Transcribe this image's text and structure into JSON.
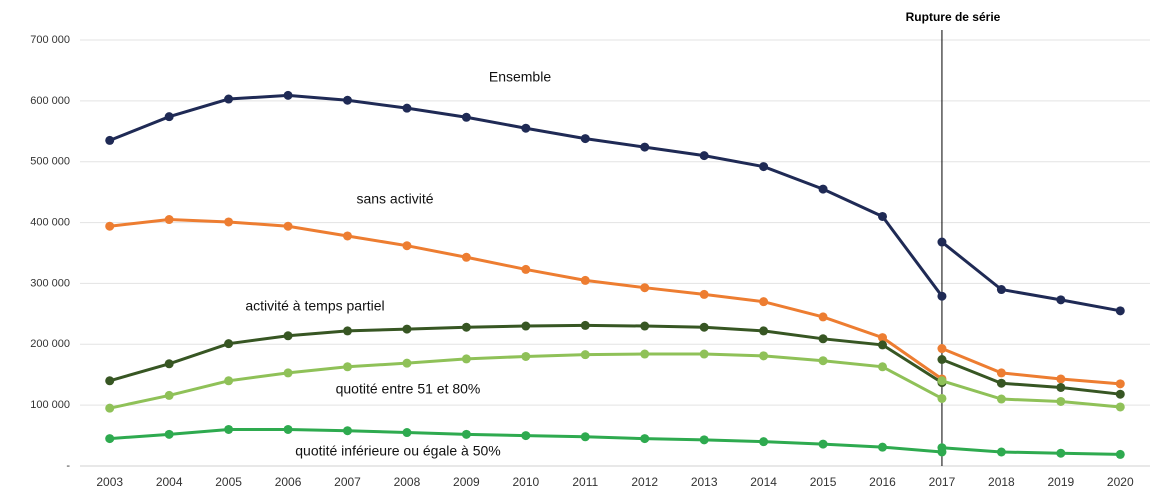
{
  "chart_data": {
    "type": "line",
    "annotation": "Rupture de série",
    "break_at": "2017",
    "categories": [
      "2003",
      "2004",
      "2005",
      "2006",
      "2007",
      "2008",
      "2009",
      "2010",
      "2011",
      "2012",
      "2013",
      "2014",
      "2015",
      "2016",
      "2017",
      "2018",
      "2019",
      "2020"
    ],
    "ylim": [
      0,
      700000
    ],
    "yticks": [
      {
        "value": 0,
        "label": "-"
      },
      {
        "value": 100000,
        "label": "100 000"
      },
      {
        "value": 200000,
        "label": "200 000"
      },
      {
        "value": 300000,
        "label": "300 000"
      },
      {
        "value": 400000,
        "label": "400 000"
      },
      {
        "value": 500000,
        "label": "500 000"
      },
      {
        "value": 600000,
        "label": "600 000"
      },
      {
        "value": 700000,
        "label": "700 000"
      }
    ],
    "grid": true,
    "series": [
      {
        "name": "Ensemble",
        "color": "#1f2a55",
        "values": [
          535000,
          574000,
          603000,
          609000,
          601000,
          588000,
          573000,
          555000,
          538000,
          524000,
          510000,
          492000,
          455000,
          410000,
          279000,
          null,
          null,
          null
        ],
        "values_after_break": [
          null,
          null,
          null,
          null,
          null,
          null,
          null,
          null,
          null,
          null,
          null,
          null,
          null,
          null,
          368000,
          290000,
          273000,
          255000
        ]
      },
      {
        "name": "sans activité",
        "color": "#ed7d31",
        "values": [
          394000,
          405000,
          401000,
          394000,
          378000,
          362000,
          343000,
          323000,
          305000,
          293000,
          282000,
          270000,
          245000,
          211000,
          143000,
          null,
          null,
          null
        ],
        "values_after_break": [
          null,
          null,
          null,
          null,
          null,
          null,
          null,
          null,
          null,
          null,
          null,
          null,
          null,
          null,
          193000,
          153000,
          143000,
          135000
        ]
      },
      {
        "name": "activité à temps partiel",
        "color": "#375623",
        "values": [
          140000,
          168000,
          201000,
          214000,
          222000,
          225000,
          228000,
          230000,
          231000,
          230000,
          228000,
          222000,
          209000,
          199000,
          137000,
          null,
          null,
          null
        ],
        "values_after_break": [
          null,
          null,
          null,
          null,
          null,
          null,
          null,
          null,
          null,
          null,
          null,
          null,
          null,
          null,
          175000,
          136000,
          129000,
          118000
        ]
      },
      {
        "name": "quotité entre 51 et 80%",
        "color": "#8fc158",
        "values": [
          95000,
          116000,
          140000,
          153000,
          163000,
          169000,
          176000,
          180000,
          183000,
          184000,
          184000,
          181000,
          173000,
          163000,
          111000,
          null,
          null,
          null
        ],
        "values_after_break": [
          null,
          null,
          null,
          null,
          null,
          null,
          null,
          null,
          null,
          null,
          null,
          null,
          null,
          null,
          140000,
          110000,
          106000,
          97000
        ]
      },
      {
        "name": "quotité inférieure ou égale à 50%",
        "color": "#2eaa4f",
        "values": [
          45000,
          52000,
          60000,
          60000,
          58000,
          55000,
          52000,
          50000,
          48000,
          45000,
          43000,
          40000,
          36000,
          31000,
          23000,
          null,
          null,
          null
        ],
        "values_after_break": [
          null,
          null,
          null,
          null,
          null,
          null,
          null,
          null,
          null,
          null,
          null,
          null,
          null,
          null,
          30000,
          23000,
          21000,
          19000
        ]
      }
    ]
  }
}
